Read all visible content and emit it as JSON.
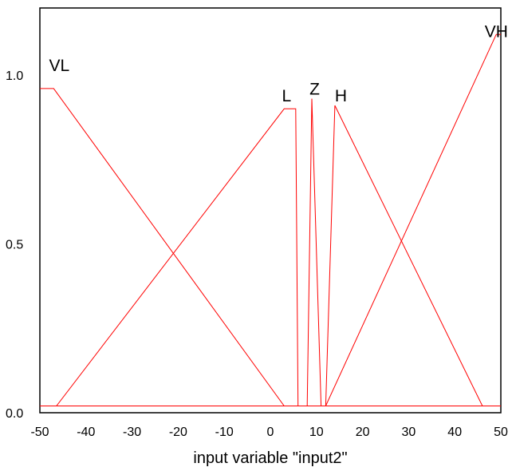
{
  "chart_data": {
    "type": "line",
    "title": "",
    "xlabel": "input variable \"input2\"",
    "ylabel": "",
    "xlim": [
      -50,
      50
    ],
    "ylim": [
      0,
      1.14
    ],
    "x_ticks": [
      "-50",
      "-40",
      "-30",
      "-20",
      "-10",
      "0",
      "10",
      "20",
      "30",
      "40",
      "50"
    ],
    "y_ticks": [
      "0.0",
      "0.5",
      "1.0"
    ],
    "grid": false,
    "line_color": "#ff0000",
    "series": [
      {
        "name": "VL",
        "x": [
          -50,
          -47,
          3,
          50
        ],
        "y": [
          0.96,
          0.96,
          0.02,
          0.02
        ]
      },
      {
        "name": "L",
        "x": [
          -50,
          -46.4,
          3,
          5.5,
          6,
          50
        ],
        "y": [
          0.02,
          0.02,
          0.9,
          0.9,
          0.02,
          0.02
        ]
      },
      {
        "name": "Z",
        "x": [
          -50,
          8,
          9,
          11,
          50
        ],
        "y": [
          0.02,
          0.02,
          0.93,
          0.02,
          0.02
        ]
      },
      {
        "name": "H",
        "x": [
          -50,
          12,
          14,
          46,
          50
        ],
        "y": [
          0.02,
          0.02,
          0.91,
          0.02,
          0.02
        ]
      },
      {
        "name": "VH",
        "x": [
          -50,
          12,
          49,
          50
        ],
        "y": [
          0.02,
          0.02,
          1.12,
          1.12
        ]
      }
    ],
    "label_positions": [
      {
        "name": "VL",
        "x": -48,
        "y": 1.0
      },
      {
        "name": "L",
        "x": 2.5,
        "y": 0.91
      },
      {
        "name": "Z",
        "x": 8.5,
        "y": 0.93
      },
      {
        "name": "H",
        "x": 14,
        "y": 0.91
      },
      {
        "name": "VH",
        "x": 46.5,
        "y": 1.1
      }
    ]
  }
}
